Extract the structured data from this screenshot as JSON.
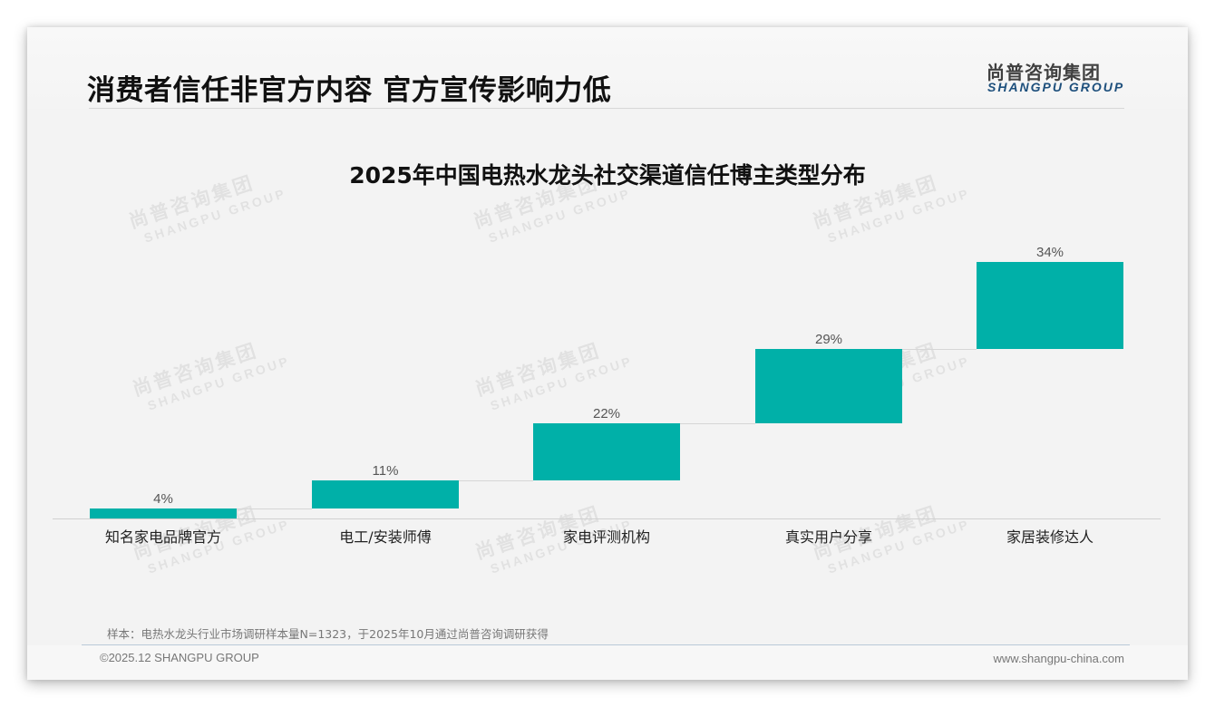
{
  "header": {
    "title": "消费者信任非官方内容 官方宣传影响力低",
    "logo_cn": "尚普咨询集团",
    "logo_en": "SHANGPU GROUP"
  },
  "watermark": {
    "cn": "尚普咨询集团",
    "en": "SHANGPU GROUP"
  },
  "colors": {
    "bar": "#00b0a8",
    "logo_en": "#1d4f7c"
  },
  "chart_data": {
    "type": "bar",
    "subtype": "waterfall",
    "title": "2025年中国电热水龙头社交渠道信任博主类型分布",
    "xlabel": "",
    "ylabel": "",
    "categories": [
      "知名家电品牌官方",
      "电工/安装师傅",
      "家电评测机构",
      "真实用户分享",
      "家居装修达人"
    ],
    "values": [
      4,
      11,
      22,
      29,
      34
    ],
    "labels": [
      "4%",
      "11%",
      "22%",
      "29%",
      "34%"
    ],
    "unit": "%",
    "ylim": [
      0,
      100
    ],
    "grid": false,
    "legend": null
  },
  "footer": {
    "note": "样本：电热水龙头行业市场调研样本量N=1323，于2025年10月通过尚普咨询调研获得",
    "copyright": "©2025.12 SHANGPU GROUP",
    "website": "www.shangpu-china.com"
  }
}
